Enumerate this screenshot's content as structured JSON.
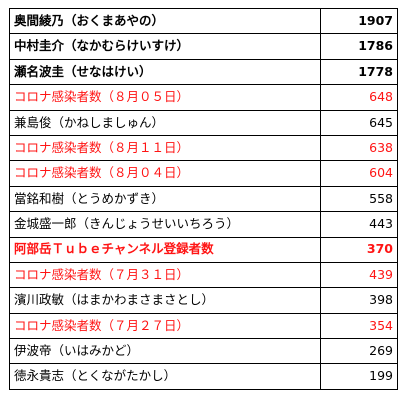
{
  "table": {
    "rows": [
      {
        "name": "奥間綾乃（おくまあやの）",
        "value": "1907",
        "bold": true,
        "red": false
      },
      {
        "name": "中村圭介（なかむらけいすけ）",
        "value": "1786",
        "bold": true,
        "red": false
      },
      {
        "name": "瀬名波圭（せなはけい）",
        "value": "1778",
        "bold": true,
        "red": false
      },
      {
        "name": "コロナ感染者数（８月０５日）",
        "value": "648",
        "bold": false,
        "red": true
      },
      {
        "name": "兼島俊（かねしましゅん）",
        "value": "645",
        "bold": false,
        "red": false
      },
      {
        "name": "コロナ感染者数（８月１１日）",
        "value": "638",
        "bold": false,
        "red": true
      },
      {
        "name": "コロナ感染者数（８月０４日）",
        "value": "604",
        "bold": false,
        "red": true
      },
      {
        "name": "當銘和樹（とうめかずき）",
        "value": "558",
        "bold": false,
        "red": false
      },
      {
        "name": "金城盛一郎（きんじょうせいいちろう）",
        "value": "443",
        "bold": false,
        "red": false
      },
      {
        "name": "阿部岳Ｔｕｂｅチャンネル登録者数",
        "value": "370",
        "bold": true,
        "red": true
      },
      {
        "name": "コロナ感染者数（７月３１日）",
        "value": "439",
        "bold": false,
        "red": true
      },
      {
        "name": "濱川政敏（はまかわまさまさとし）",
        "value": "398",
        "bold": false,
        "red": false
      },
      {
        "name": "コロナ感染者数（７月２７日）",
        "value": "354",
        "bold": false,
        "red": true
      },
      {
        "name": "伊波帝（いはみかど）",
        "value": "269",
        "bold": false,
        "red": false
      },
      {
        "name": "徳永貴志（とくながたかし）",
        "value": "199",
        "bold": false,
        "red": false
      }
    ]
  },
  "colors": {
    "highlight_text": "#ff1414",
    "normal_text": "#000000",
    "grid_line": "#000000",
    "background": "#ffffff"
  }
}
